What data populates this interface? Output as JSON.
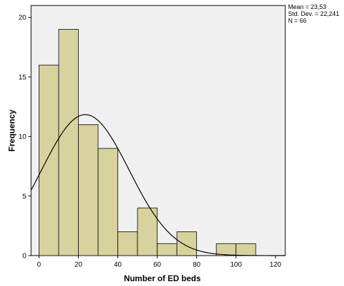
{
  "chart_data": {
    "type": "bar",
    "subtype": "histogram",
    "bins": [
      {
        "from": 0,
        "to": 10,
        "count": 16
      },
      {
        "from": 10,
        "to": 20,
        "count": 19
      },
      {
        "from": 20,
        "to": 30,
        "count": 11
      },
      {
        "from": 30,
        "to": 40,
        "count": 9
      },
      {
        "from": 40,
        "to": 50,
        "count": 2
      },
      {
        "from": 50,
        "to": 60,
        "count": 4
      },
      {
        "from": 60,
        "to": 70,
        "count": 1
      },
      {
        "from": 70,
        "to": 80,
        "count": 2
      },
      {
        "from": 80,
        "to": 90,
        "count": 0
      },
      {
        "from": 90,
        "to": 100,
        "count": 1
      },
      {
        "from": 100,
        "to": 110,
        "count": 1
      }
    ],
    "normal_curve": {
      "mean": 23.53,
      "std_dev": 22.241,
      "n": 66
    },
    "xlabel": "Number of ED beds",
    "ylabel": "Frequency",
    "xlim": [
      -4,
      125
    ],
    "ylim": [
      0,
      21
    ],
    "x_ticks": [
      0,
      20,
      40,
      60,
      80,
      100,
      120
    ],
    "y_ticks": [
      0,
      5,
      10,
      15,
      20
    ],
    "grid": false,
    "bar_color": "#d7d29e",
    "plot_background": "#f0f0f0",
    "stats_box": {
      "mean_label": "Mean = 23,53",
      "sd_label": "Std. Dev. = 22,241",
      "n_label": "N = 66"
    }
  }
}
